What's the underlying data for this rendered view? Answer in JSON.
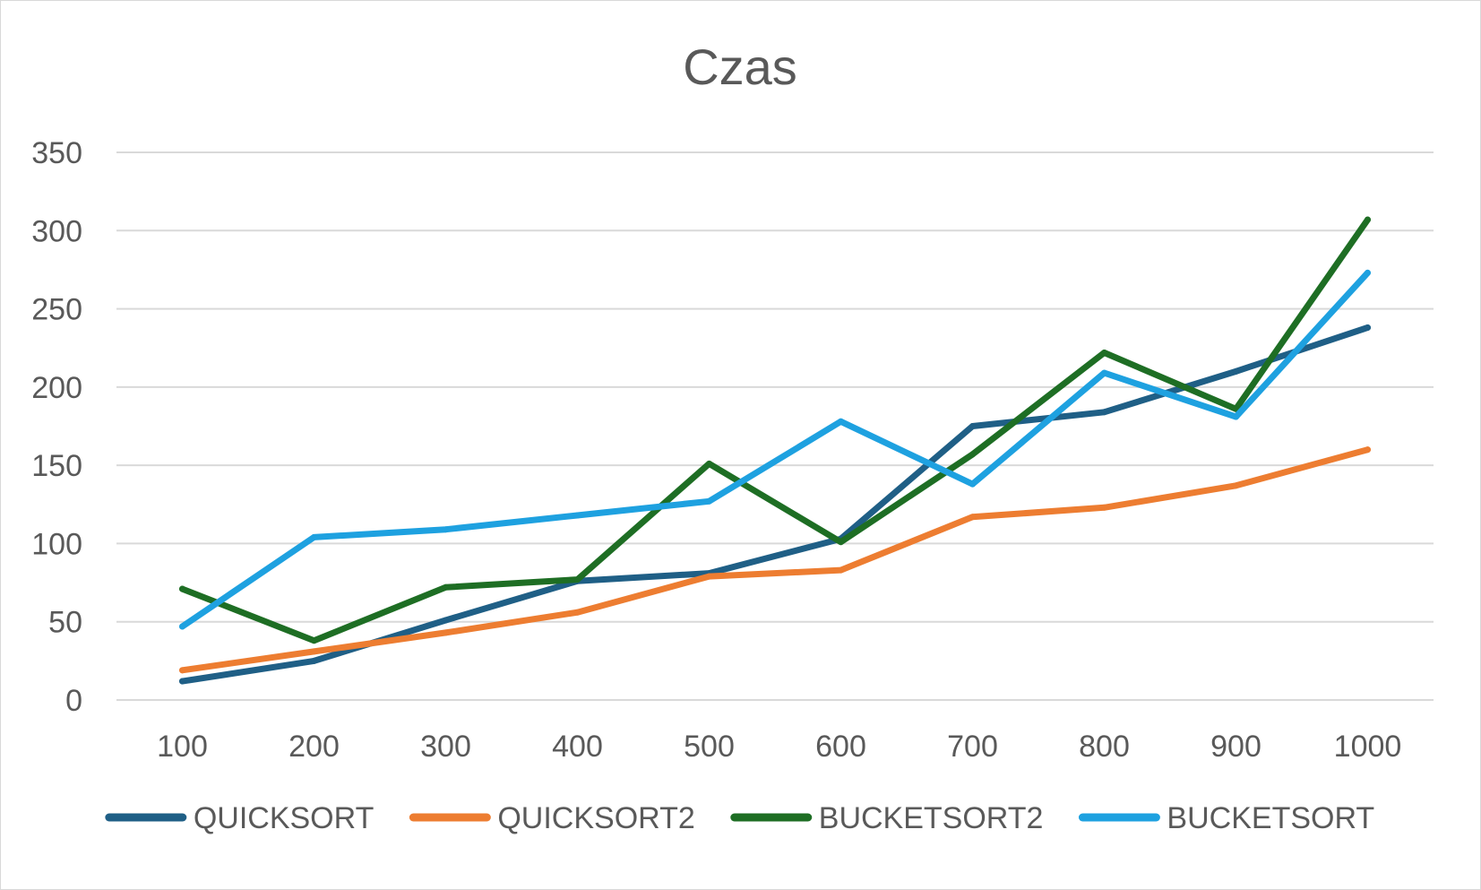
{
  "chart_data": {
    "type": "line",
    "title": "Czas",
    "xlabel": "",
    "ylabel": "",
    "categories": [
      "100",
      "200",
      "300",
      "400",
      "500",
      "600",
      "700",
      "800",
      "900",
      "1000"
    ],
    "ylim": [
      0,
      350
    ],
    "yticks": [
      "0",
      "50",
      "100",
      "150",
      "200",
      "250",
      "300",
      "350"
    ],
    "grid": true,
    "legend_position": "bottom",
    "series": [
      {
        "name": "QUICKSORT",
        "color": "#1f5f86",
        "values": [
          12,
          25,
          51,
          76,
          81,
          103,
          175,
          184,
          210,
          238
        ]
      },
      {
        "name": "QUICKSORT2",
        "color": "#ed7d31",
        "values": [
          19,
          31,
          43,
          56,
          79,
          83,
          117,
          123,
          137,
          160
        ]
      },
      {
        "name": "BUCKETSORT2",
        "color": "#1e6e24",
        "values": [
          71,
          38,
          72,
          77,
          151,
          101,
          157,
          222,
          186,
          307
        ]
      },
      {
        "name": "BUCKETSORT",
        "color": "#1ea1e0",
        "values": [
          47,
          104,
          109,
          118,
          127,
          178,
          138,
          209,
          181,
          273
        ]
      }
    ]
  }
}
